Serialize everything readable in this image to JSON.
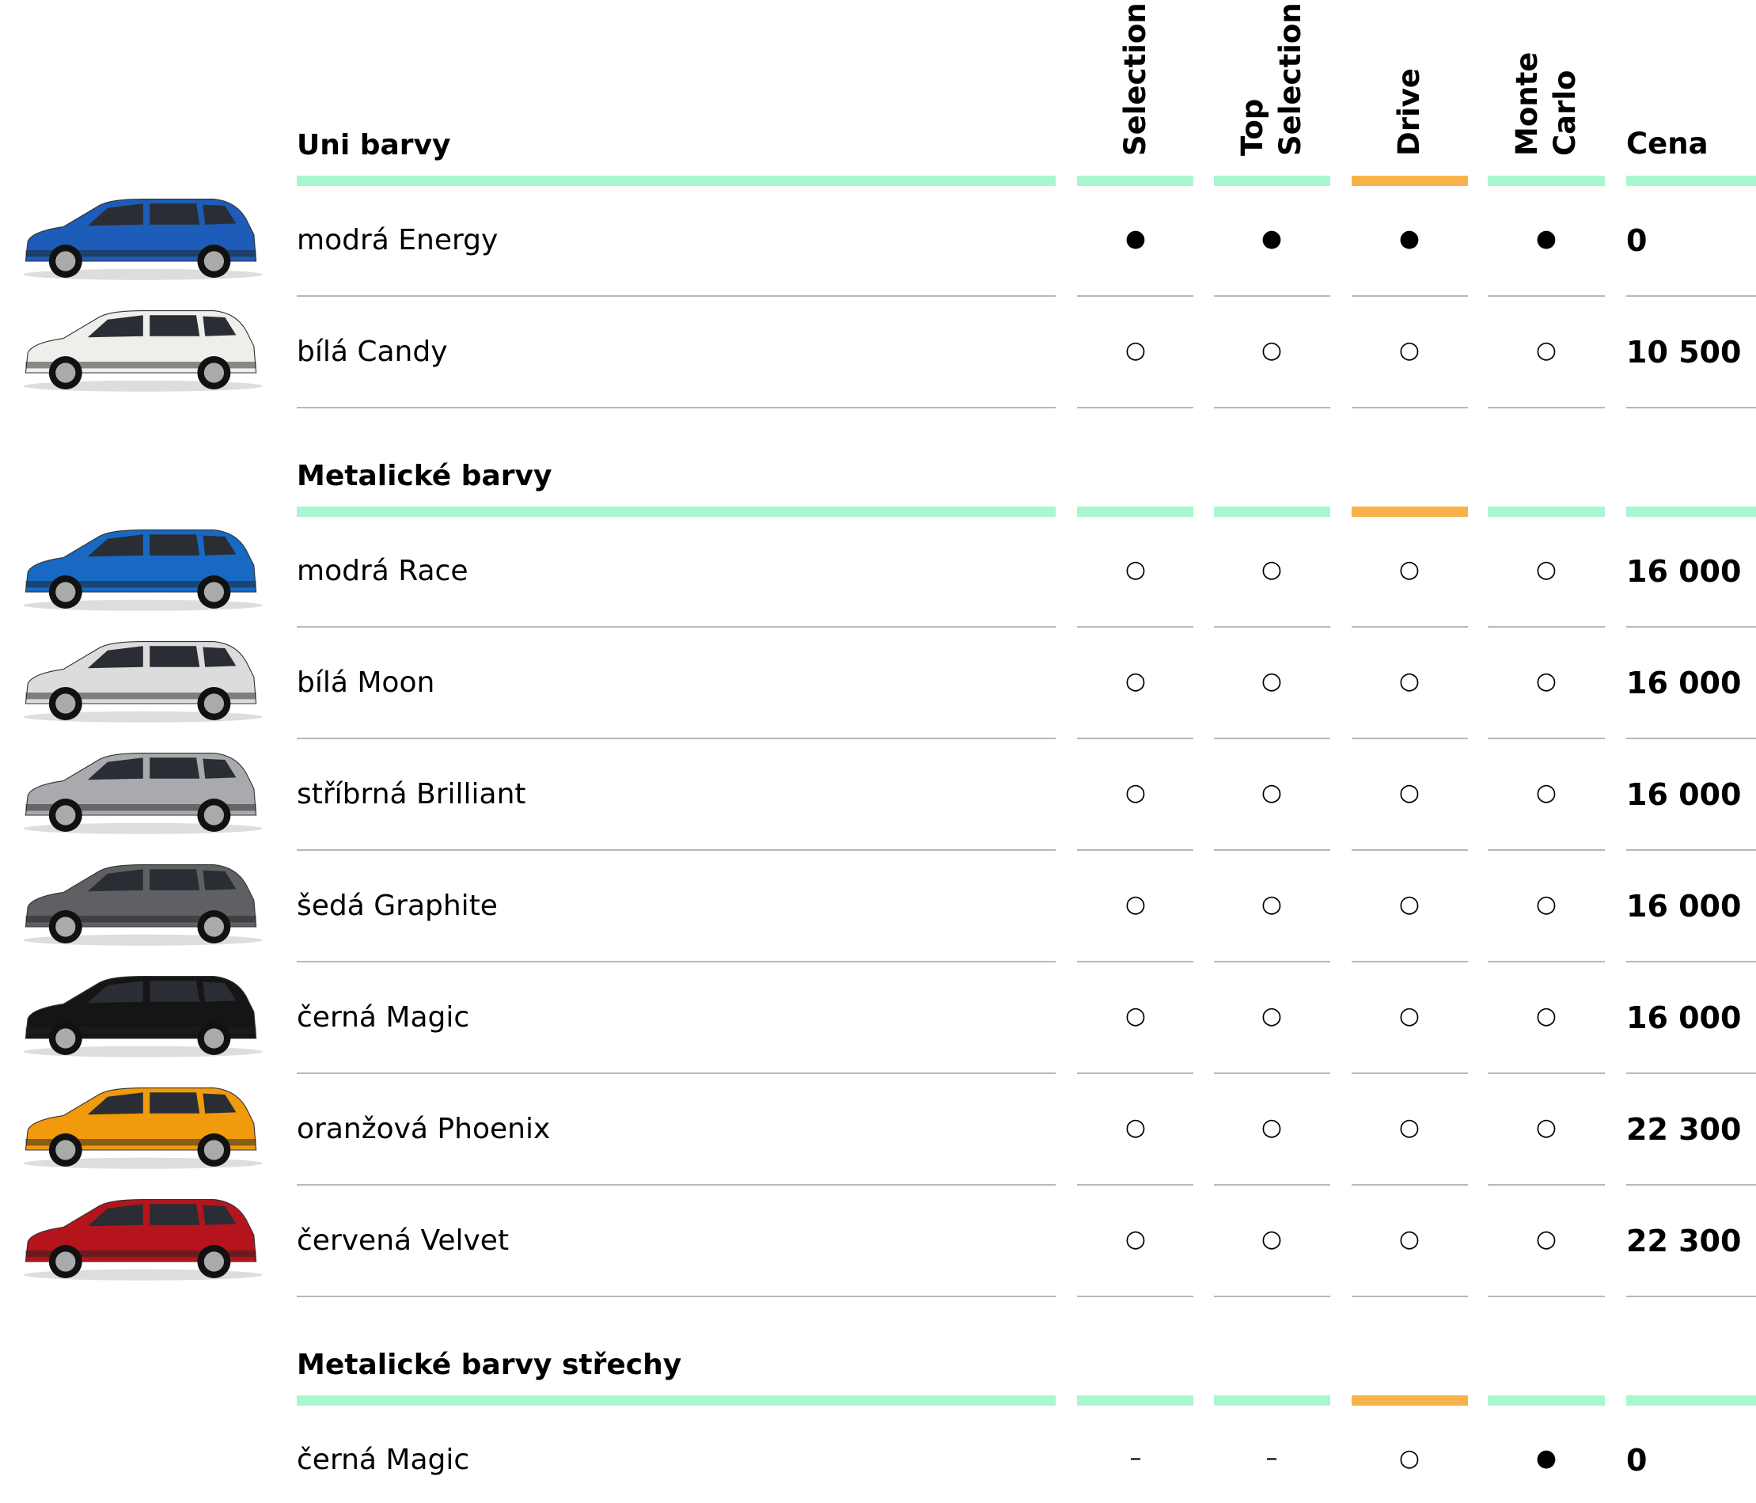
{
  "columns": [
    [
      "Selection"
    ],
    [
      "Top",
      "Selection"
    ],
    [
      "Drive"
    ],
    [
      "Monte",
      "Carlo"
    ]
  ],
  "price_header": "Cena",
  "sections": [
    {
      "title": "Uni barvy",
      "rows": [
        {
          "name": "modrá Energy",
          "car_color": "#1d5cb8",
          "cells": [
            "●",
            "●",
            "●",
            "●"
          ],
          "price": "0"
        },
        {
          "name": "bílá Candy",
          "car_color": "#eeeeea",
          "cells": [
            "○",
            "○",
            "○",
            "○"
          ],
          "price": "10 500"
        }
      ]
    },
    {
      "title": "Metalické barvy",
      "rows": [
        {
          "name": "modrá Race",
          "car_color": "#1769c4",
          "cells": [
            "○",
            "○",
            "○",
            "○"
          ],
          "price": "16 000"
        },
        {
          "name": "bílá Moon",
          "car_color": "#dcdcdc",
          "cells": [
            "○",
            "○",
            "○",
            "○"
          ],
          "price": "16 000"
        },
        {
          "name": "stříbrná Brilliant",
          "car_color": "#a9aaae",
          "cells": [
            "○",
            "○",
            "○",
            "○"
          ],
          "price": "16 000"
        },
        {
          "name": "šedá Graphite",
          "car_color": "#5f6064",
          "cells": [
            "○",
            "○",
            "○",
            "○"
          ],
          "price": "16 000"
        },
        {
          "name": "černá Magic",
          "car_color": "#151515",
          "cells": [
            "○",
            "○",
            "○",
            "○"
          ],
          "price": "16 000"
        },
        {
          "name": "oranžová Phoenix",
          "car_color": "#f09a0c",
          "cells": [
            "○",
            "○",
            "○",
            "○"
          ],
          "price": "22 300"
        },
        {
          "name": "červená Velvet",
          "car_color": "#b5141c",
          "cells": [
            "○",
            "○",
            "○",
            "○"
          ],
          "price": "22 300"
        }
      ]
    },
    {
      "title": "Metalické barvy střechy",
      "rows": [
        {
          "name": "černá Magic",
          "cells": [
            "–",
            "–",
            "○",
            "●"
          ],
          "price": "0"
        }
      ]
    }
  ]
}
